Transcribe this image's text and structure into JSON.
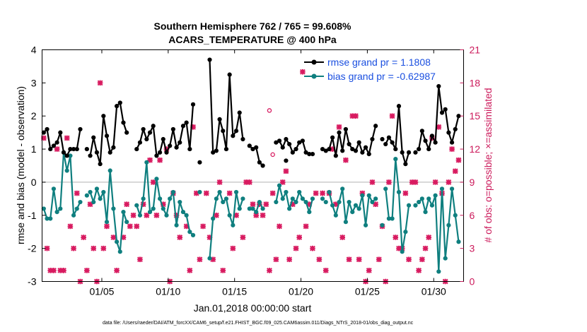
{
  "chart_data": {
    "type": "line",
    "title_line1": "Southern Hemisphere 762 / 765 = 99.608%",
    "title_line2": "ACARS_TEMPERATURE @ 400 hPa",
    "xlabel": "Jan.01,2018 00:00:00 start",
    "ylabel_left": "rmse and bias (model - observation)",
    "ylabel_right": "# of obs: o=possible; ×=assimilated",
    "footnote": "data file: /Users/raeder/DAI/ATM_forcXX/CAM6_setup/f.e21.FHIST_BGC.f09_025.CAM6assim.011/Diags_NTrS_2018-01/obs_diag_output.nc",
    "xlim": [
      0.5,
      32.25
    ],
    "ylim_left": [
      -3,
      4
    ],
    "ylim_right": [
      0,
      21
    ],
    "x_ticks": [
      5,
      10,
      15,
      20,
      25,
      30
    ],
    "x_tick_labels": [
      "01/05",
      "01/10",
      "01/15",
      "01/20",
      "01/25",
      "01/30"
    ],
    "y_ticks_left": [
      "-3",
      "-2",
      "-1",
      "0",
      "1",
      "2",
      "3",
      "4"
    ],
    "y_ticks_right": [
      "0",
      "3",
      "6",
      "9",
      "12",
      "15",
      "18",
      "21"
    ],
    "colors": {
      "rmse": "#000000",
      "bias": "#0f7f7f",
      "obs": "#d81b60",
      "zero_line": "#cccccc"
    },
    "series": [
      {
        "name": "rmse grand pr = 1.1808",
        "segments": [
          {
            "x": [
              0.625,
              0.875,
              1.125,
              1.375,
              1.625,
              1.875,
              2.125,
              2.375,
              2.625,
              2.875,
              3.125,
              3.375
            ],
            "y": [
              1.5,
              1.6,
              1.0,
              1.1,
              1.2,
              1.5,
              0.9,
              0.8,
              1.0,
              1.0,
              1.0,
              1.6
            ]
          },
          {
            "x": [
              4.125,
              4.375,
              4.625,
              4.875,
              5.125,
              5.375,
              5.625,
              5.875,
              6.125,
              6.375,
              6.625,
              6.875
            ],
            "y": [
              0.8,
              1.35,
              0.9,
              0.55,
              2.0,
              1.4,
              0.9,
              1.05,
              2.3,
              2.4,
              1.8,
              1.5
            ]
          },
          {
            "x": [
              7.625,
              7.875,
              8.125,
              8.375,
              8.625,
              8.875,
              9.125,
              9.375,
              9.625,
              9.875,
              10.125,
              10.375,
              10.625,
              10.875,
              11.125,
              11.375,
              11.625,
              11.875
            ],
            "y": [
              1.0,
              1.2,
              1.6,
              1.3,
              1.5,
              1.7,
              0.8,
              0.9,
              1.3,
              0.9,
              1.1,
              1.6,
              1.05,
              1.2,
              1.7,
              1.8,
              1.0,
              2.35
            ]
          },
          {
            "x": [
              13.125,
              13.375,
              13.625,
              13.875,
              14.125,
              14.375,
              14.625,
              14.875,
              15.125,
              15.375,
              15.625
            ],
            "y": [
              3.7,
              0.9,
              0.95,
              1.9,
              1.55,
              1.0,
              3.25,
              1.4,
              1.55,
              2.1,
              1.3
            ]
          },
          {
            "x": [
              16.125,
              16.375,
              16.625,
              16.875,
              17.125
            ],
            "y": [
              1.1,
              1.0,
              1.05,
              0.6,
              0.5
            ]
          },
          {
            "x": [
              18.125,
              18.375,
              18.625,
              18.875,
              19.125,
              19.375,
              19.625,
              19.875,
              20.125,
              20.375,
              20.625,
              20.875
            ],
            "y": [
              1.2,
              1.25,
              1.05,
              1.3,
              1.15,
              0.9,
              1.0,
              1.2,
              1.25,
              0.9,
              0.85,
              0.85
            ]
          },
          {
            "x": [
              22.125,
              22.375,
              22.625,
              22.875,
              23.125,
              23.375,
              23.625,
              23.875,
              24.125,
              24.375,
              24.625,
              24.875,
              25.125,
              25.375,
              25.625
            ],
            "y": [
              1.0,
              1.35,
              0.8,
              1.5,
              0.95,
              1.6,
              1.15,
              1.0,
              0.95,
              1.2,
              0.9,
              1.05,
              0.85,
              1.3,
              1.7
            ]
          },
          {
            "x": [
              26.375,
              26.625,
              26.875,
              27.125,
              27.375,
              27.625,
              27.875,
              28.125
            ],
            "y": [
              1.15,
              1.35,
              1.2,
              1.0,
              2.3,
              0.9,
              0.55,
              0.9
            ]
          },
          {
            "x": [
              28.875,
              29.125,
              29.375,
              29.625,
              29.875,
              30.125,
              30.375,
              30.625,
              30.875,
              31.125,
              31.375,
              31.625,
              31.875
            ],
            "y": [
              1.0,
              1.55,
              1.25,
              1.0,
              1.4,
              1.2,
              2.9,
              2.1,
              2.2,
              1.5,
              1.2,
              1.6,
              2.0
            ]
          }
        ],
        "isolated_points": {
          "x": [
            3.875,
            12.375,
            18.875,
            21.625,
            21.875,
            26.125,
            28.625
          ],
          "y": [
            1.0,
            0.6,
            0.65,
            1.0,
            0.95,
            1.3,
            0.9
          ]
        }
      },
      {
        "name": "bias grand pr = -0.62987",
        "segments": [
          {
            "x": [
              0.625,
              0.875,
              1.125,
              1.375,
              1.625,
              1.875,
              2.125,
              2.375,
              2.625,
              2.875,
              3.125,
              3.375
            ],
            "y": [
              -0.8,
              -1.1,
              -1.1,
              -0.2,
              -0.9,
              -0.8,
              0.9,
              0.35,
              0.8,
              -1.0,
              -0.8,
              -0.6
            ]
          },
          {
            "x": [
              4.125,
              4.375,
              4.625,
              4.875,
              5.125,
              5.375,
              5.625,
              5.875,
              6.125,
              6.375,
              6.625,
              6.875
            ],
            "y": [
              -0.3,
              -0.6,
              -0.2,
              -0.5,
              -0.3,
              -1.2,
              0.35,
              -0.8,
              -1.8,
              -2.1,
              -0.9,
              -1.2
            ]
          },
          {
            "x": [
              7.625,
              7.875,
              8.125,
              8.375,
              8.625,
              8.875,
              9.125,
              9.375,
              9.625,
              9.875,
              10.125,
              10.375,
              10.625,
              10.875,
              11.125,
              11.375,
              11.625,
              11.875
            ],
            "y": [
              -0.7,
              -1.0,
              -0.5,
              0.6,
              -0.9,
              -0.8,
              0.1,
              -0.5,
              -0.8,
              -1.0,
              -0.5,
              -0.3,
              -1.3,
              -0.6,
              -0.9,
              -1.0,
              -1.5,
              -1.6
            ]
          },
          {
            "x": [
              13.125,
              13.375,
              13.625,
              13.875,
              14.125,
              14.375,
              14.625,
              14.875,
              15.125,
              15.375,
              15.625
            ],
            "y": [
              -2.3,
              -1.1,
              -0.5,
              -0.3,
              -0.6,
              -0.5,
              -1.0,
              -1.3,
              -0.3,
              -0.8,
              -0.5
            ]
          },
          {
            "x": [
              16.125,
              16.375,
              16.625,
              16.875,
              17.125
            ],
            "y": [
              -0.8,
              -0.8,
              -0.9,
              -0.6,
              -0.8
            ]
          },
          {
            "x": [
              18.125,
              18.375,
              18.625,
              18.875,
              19.125,
              19.375,
              19.625,
              19.875,
              20.125,
              20.375,
              20.625,
              20.875
            ],
            "y": [
              -0.6,
              -0.1,
              -0.5,
              -0.3,
              -0.8,
              -0.5,
              -0.6,
              -0.3,
              -0.5,
              -0.6,
              -0.9,
              -0.5
            ]
          },
          {
            "x": [
              22.125,
              22.375,
              22.625,
              22.875,
              23.125,
              23.375,
              23.625,
              23.875,
              24.125,
              24.375,
              24.625,
              24.875,
              25.125,
              25.375,
              25.625
            ],
            "y": [
              -0.3,
              -0.7,
              -1.0,
              -0.6,
              -0.2,
              -1.2,
              -0.6,
              -0.9,
              -0.7,
              -0.8,
              -0.4,
              -1.3,
              -0.4,
              -0.6,
              -0.5
            ]
          },
          {
            "x": [
              26.375,
              26.625,
              26.875,
              27.125,
              27.375,
              27.625,
              27.875,
              28.125
            ],
            "y": [
              -0.2,
              -1.1,
              -1.1,
              0.7,
              -0.3,
              -2.1,
              -1.5,
              -0.7
            ]
          },
          {
            "x": [
              28.875,
              29.125,
              29.375,
              29.625,
              29.875,
              30.125,
              30.375,
              30.625,
              30.875,
              31.125,
              31.375,
              31.625,
              31.875
            ],
            "y": [
              -0.6,
              -0.5,
              -0.9,
              -0.5,
              -0.7,
              -0.4,
              -2.7,
              -0.2,
              -2.3,
              -1.3,
              -0.2,
              -1.0,
              -1.8
            ]
          }
        ],
        "isolated_points": {
          "x": [
            3.875,
            12.375,
            21.625,
            21.875,
            26.125,
            28.625
          ],
          "y": [
            -0.4,
            -0.3,
            -0.5,
            -0.6,
            -1.3,
            -0.7
          ]
        }
      }
    ],
    "obs_assimilated": {
      "x": [
        0.625,
        0.875,
        1.125,
        1.375,
        1.625,
        1.875,
        2.125,
        2.375,
        2.625,
        2.875,
        3.125,
        3.375,
        3.625,
        3.875,
        4.125,
        4.375,
        4.625,
        4.875,
        5.125,
        5.375,
        5.875,
        6.125,
        6.625,
        6.875,
        7.125,
        7.375,
        7.625,
        7.875,
        8.125,
        8.375,
        8.625,
        8.875,
        9.125,
        9.375,
        9.625,
        9.875,
        10.125,
        10.375,
        10.625,
        10.875,
        11.375,
        11.625,
        11.875,
        12.125,
        12.375,
        12.625,
        12.875,
        13.125,
        13.375,
        13.625,
        13.875,
        14.125,
        14.625,
        14.875,
        15.125,
        15.625,
        15.875,
        16.125,
        16.375,
        16.625,
        16.875,
        17.125,
        17.375,
        17.625,
        17.875,
        18.125,
        18.375,
        18.625,
        18.875,
        19.125,
        19.375,
        19.625,
        19.875,
        20.125,
        20.375,
        20.625,
        20.875,
        21.125,
        21.375,
        21.625,
        21.875,
        22.125,
        22.375,
        22.625,
        22.875,
        23.125,
        23.375,
        23.625,
        23.875,
        24.125,
        24.375,
        24.625,
        24.875,
        25.125,
        25.375,
        25.625,
        25.875,
        26.125,
        26.375,
        26.625,
        26.875,
        27.125,
        27.375,
        27.625,
        27.875,
        28.125,
        28.375,
        28.625,
        28.875,
        29.125,
        29.375,
        29.625,
        29.875,
        30.125,
        30.375,
        30.625,
        30.875,
        31.125,
        31.375,
        31.625,
        31.875
      ],
      "y": [
        13,
        3,
        1,
        1,
        12,
        1,
        1,
        13,
        5,
        3,
        8,
        0,
        4,
        1,
        7,
        3,
        0,
        18,
        3,
        5,
        4,
        1,
        4,
        7,
        5,
        6,
        5,
        2,
        7,
        6,
        11,
        9,
        6,
        11,
        7,
        12,
        0,
        8,
        6,
        4,
        5,
        1,
        14,
        8,
        2,
        5,
        8,
        4,
        2,
        6,
        9,
        1,
        8,
        3,
        6,
        4,
        9,
        9,
        7,
        6,
        7,
        6,
        7,
        1,
        8,
        2,
        5,
        9,
        10,
        2,
        7,
        3,
        4,
        19,
        5,
        7,
        3,
        8,
        2,
        8,
        1,
        8,
        12,
        7,
        14,
        4,
        11,
        2,
        15,
        15,
        2,
        8,
        0,
        1,
        9,
        7,
        2,
        5,
        0,
        9,
        15,
        4,
        3,
        3,
        8,
        2,
        9,
        9,
        1,
        2,
        3,
        4,
        13,
        9,
        14,
        8,
        0,
        9,
        12,
        10,
        11
      ]
    },
    "obs_possible_only": {
      "x": [
        17.625,
        17.875
      ],
      "y": [
        15.5,
        11.5
      ]
    }
  }
}
